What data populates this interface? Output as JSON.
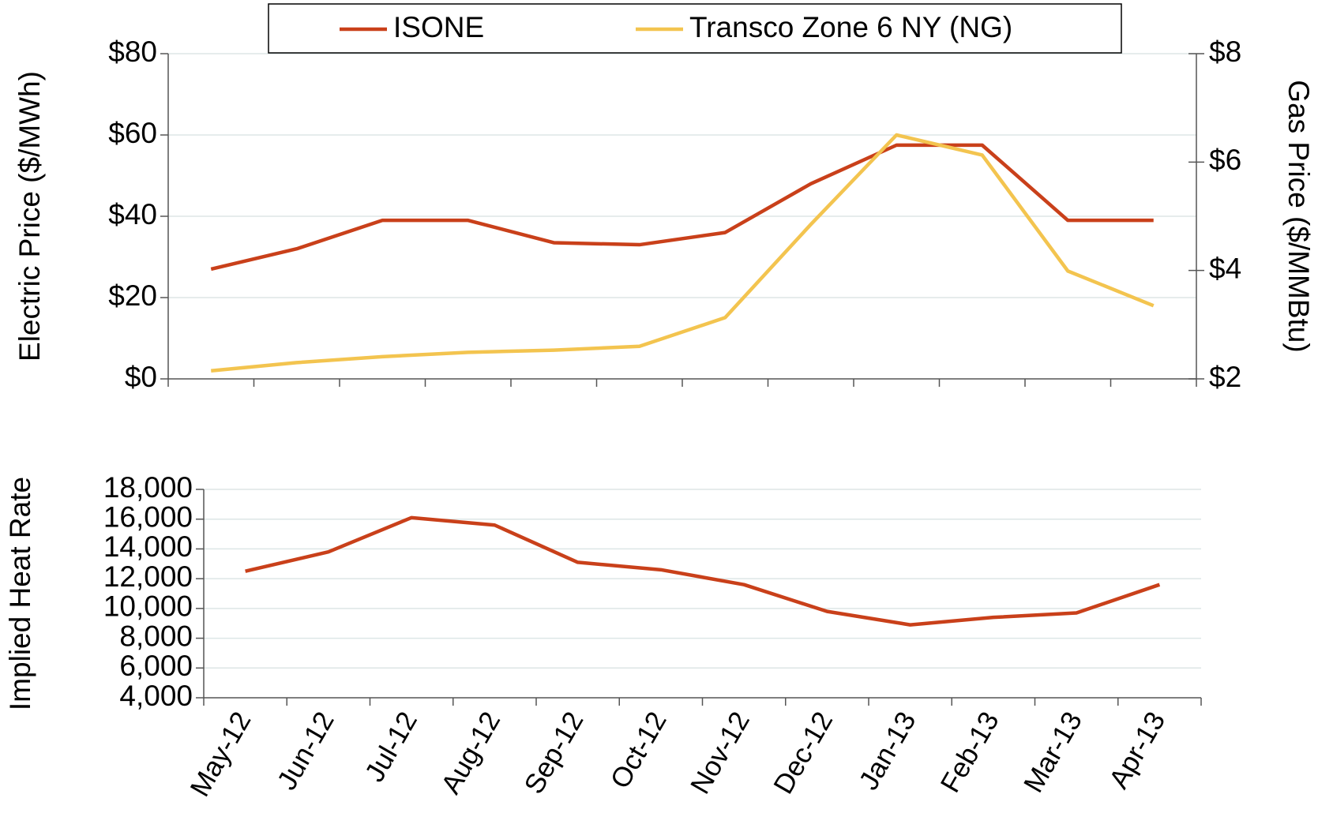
{
  "chart_data": [
    {
      "type": "line",
      "y_label": "Electric Price ($/MWh)",
      "y2_label": "Gas Price ($/MMBtu)",
      "series": [
        {
          "name": "ISONE",
          "color": "#c9401a",
          "values": [
            27,
            32,
            39,
            39,
            33.5,
            33,
            36,
            48,
            57.5,
            57.5,
            39,
            39
          ]
        },
        {
          "name": "Transco Zone 6 NY (NG)",
          "color": "#f3c44f",
          "axis": "y2",
          "values": [
            2.15,
            2.3,
            2.41,
            2.49,
            2.53,
            2.6,
            3.13,
            4.85,
            6.5,
            6.13,
            3.99,
            3.35
          ]
        }
      ],
      "ylim": [
        0,
        80
      ],
      "yticks": [
        {
          "value": 0,
          "label": "$0"
        },
        {
          "value": 20,
          "label": "$20"
        },
        {
          "value": 40,
          "label": "$40"
        },
        {
          "value": 60,
          "label": "$60"
        },
        {
          "value": 80,
          "label": "$80"
        }
      ],
      "y2lim": [
        2,
        8
      ],
      "y2ticks": [
        {
          "value": 2,
          "label": "$2"
        },
        {
          "value": 4,
          "label": "$4"
        },
        {
          "value": 6,
          "label": "$6"
        },
        {
          "value": 8,
          "label": "$8"
        }
      ],
      "grid": true,
      "legend": "top"
    },
    {
      "type": "line",
      "y_label": "Implied Heat Rate",
      "categories": [
        "May-12",
        "Jun-12",
        "Jul-12",
        "Aug-12",
        "Sep-12",
        "Oct-12",
        "Nov-12",
        "Dec-12",
        "Jan-13",
        "Feb-13",
        "Mar-13",
        "Apr-13"
      ],
      "series": [
        {
          "name": "Implied Heat Rate",
          "color": "#c9401a",
          "values": [
            12500,
            13800,
            16100,
            15600,
            13100,
            12600,
            11600,
            9800,
            8900,
            9400,
            9700,
            11600
          ]
        }
      ],
      "ylim": [
        4000,
        18000
      ],
      "yticks": [
        {
          "value": 4000,
          "label": "4,000"
        },
        {
          "value": 6000,
          "label": "6,000"
        },
        {
          "value": 8000,
          "label": "8,000"
        },
        {
          "value": 10000,
          "label": "10,000"
        },
        {
          "value": 12000,
          "label": "12,000"
        },
        {
          "value": 14000,
          "label": "14,000"
        },
        {
          "value": 16000,
          "label": "16,000"
        },
        {
          "value": 18000,
          "label": "18,000"
        }
      ],
      "grid": true
    }
  ]
}
